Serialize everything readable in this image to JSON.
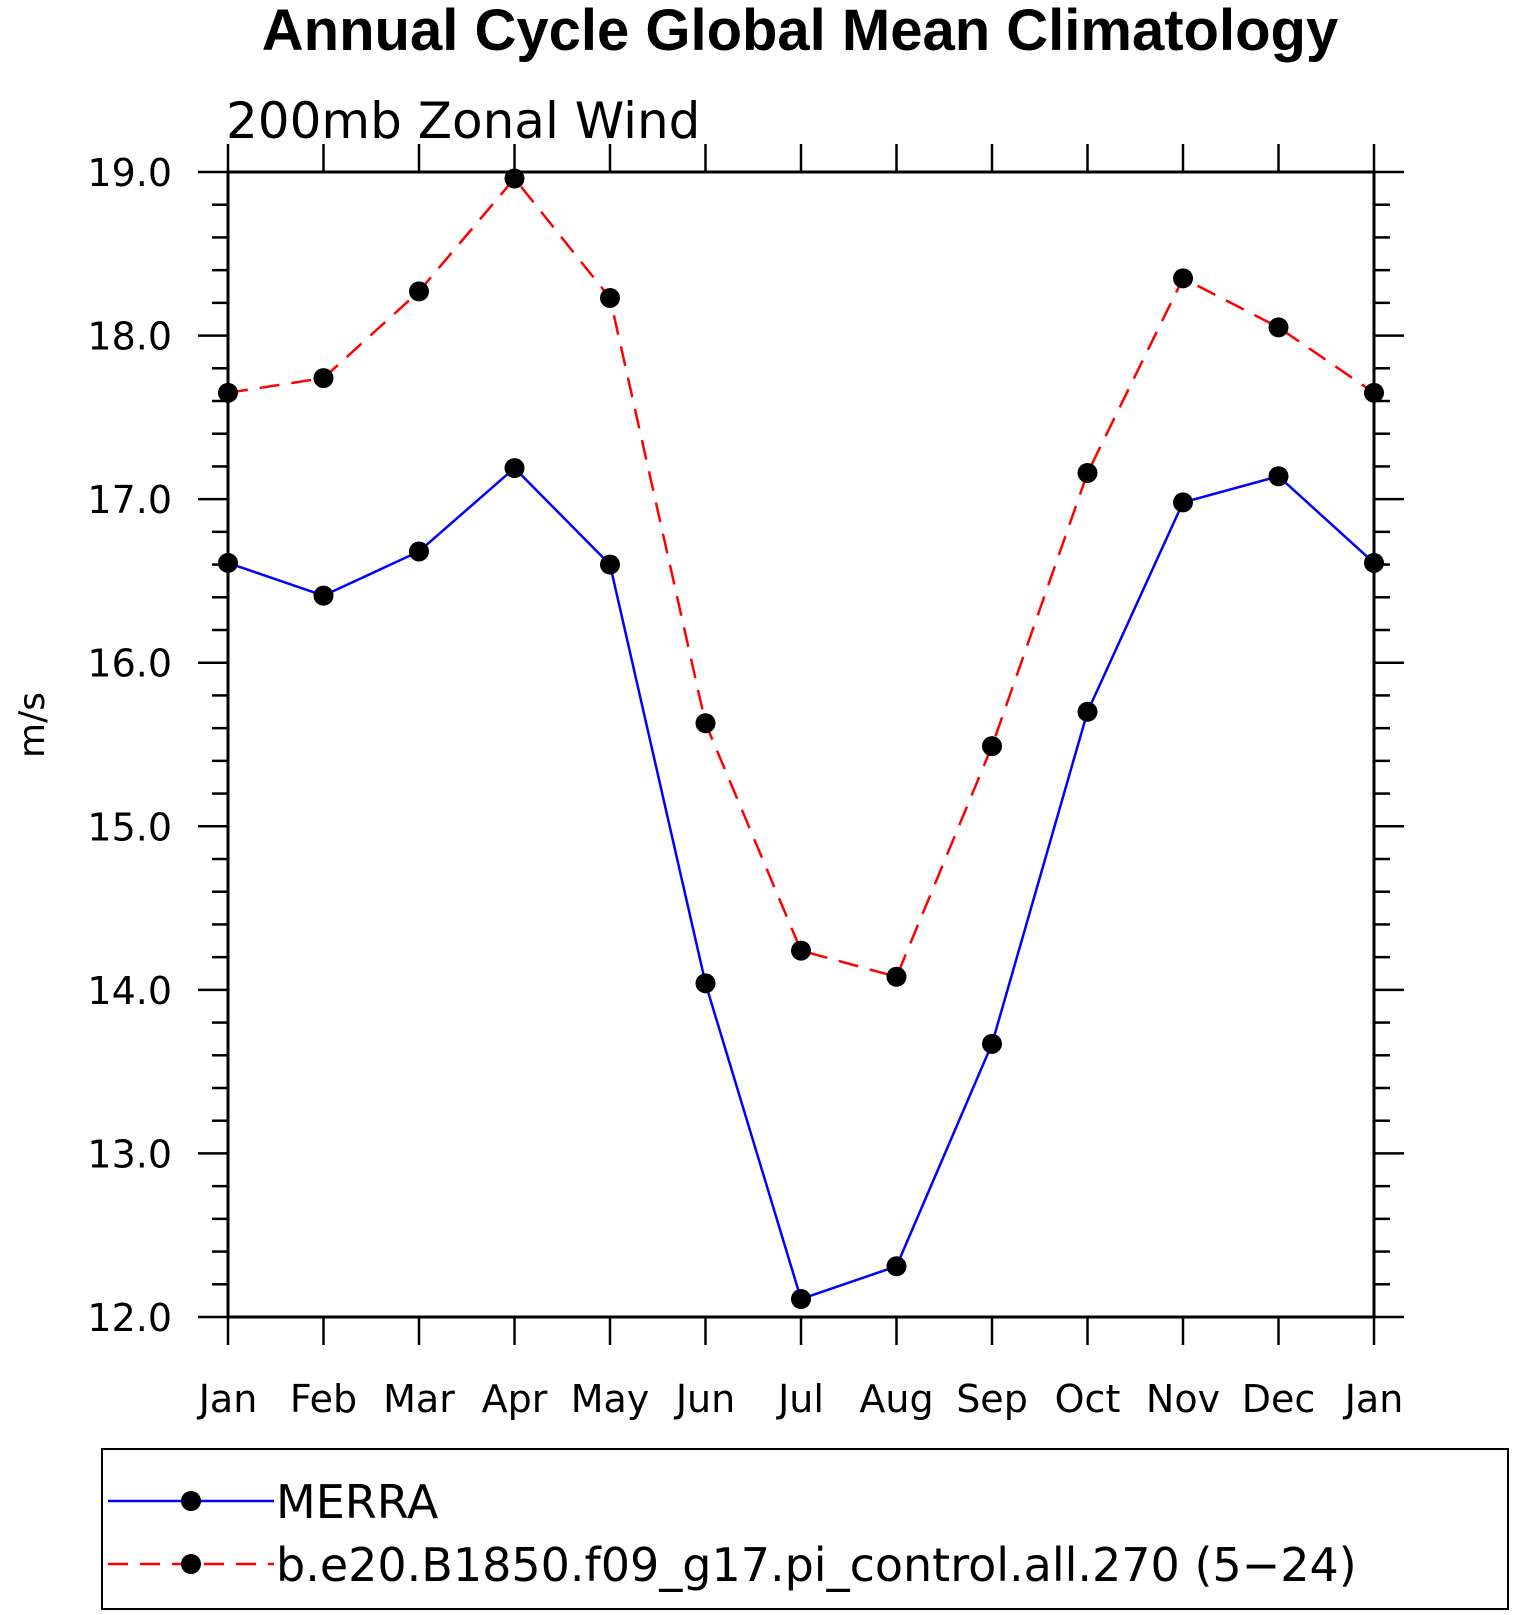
{
  "chart_data": {
    "type": "line",
    "title": "Annual Cycle Global Mean Climatology",
    "subtitle": "200mb Zonal Wind",
    "ylabel": "m/s",
    "xlabel": "",
    "categories": [
      "Jan",
      "Feb",
      "Mar",
      "Apr",
      "May",
      "Jun",
      "Jul",
      "Aug",
      "Sep",
      "Oct",
      "Nov",
      "Dec",
      "Jan"
    ],
    "ylim": [
      12.0,
      19.0
    ],
    "yticks": [
      "12.0",
      "13.0",
      "14.0",
      "15.0",
      "16.0",
      "17.0",
      "18.0",
      "19.0"
    ],
    "grid": false,
    "legend_position": "bottom",
    "series": [
      {
        "name": "MERRA",
        "color": "#0000ff",
        "style": "solid",
        "values": [
          16.61,
          16.41,
          16.68,
          17.19,
          16.6,
          14.04,
          12.11,
          12.31,
          13.67,
          15.7,
          16.98,
          17.14,
          16.61
        ]
      },
      {
        "name": "b.e20.B1850.f09_g17.pi_control.all.270 (5−24)",
        "color": "#ff0000",
        "style": "dashed",
        "values": [
          17.65,
          17.74,
          18.27,
          18.96,
          18.23,
          15.63,
          14.24,
          14.08,
          15.49,
          17.16,
          18.35,
          18.05,
          17.65
        ]
      }
    ]
  }
}
